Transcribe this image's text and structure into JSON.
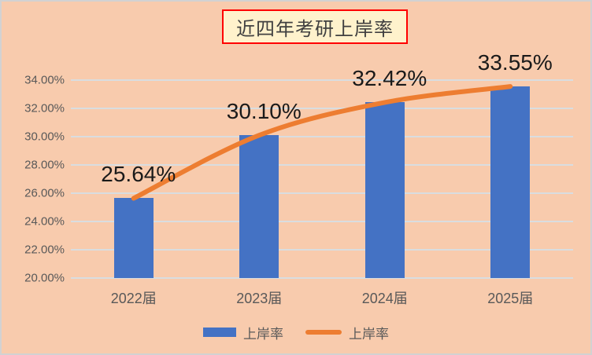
{
  "title": "近四年考研上岸率",
  "colors": {
    "background": "#F8CBAD",
    "bar": "#4472C4",
    "line": "#ED7D31",
    "grid": "#D9DDE0",
    "title_box_bg": "#FFF2CC",
    "title_box_border": "#FF0000",
    "title_text": "#404040",
    "axis_text": "#595959",
    "data_label_text": "#1a1a1a"
  },
  "chart_data": {
    "type": "bar",
    "title": "近四年考研上岸率",
    "categories": [
      "2022届",
      "2023届",
      "2024届",
      "2025届"
    ],
    "series": [
      {
        "name": "上岸率",
        "type": "bar",
        "values": [
          25.64,
          30.1,
          32.42,
          33.55
        ]
      },
      {
        "name": "上岸率",
        "type": "line",
        "values": [
          25.64,
          30.1,
          32.42,
          33.55
        ]
      }
    ],
    "data_labels": [
      "25.64%",
      "30.10%",
      "32.42%",
      "33.55%"
    ],
    "y_ticks": [
      "34.00%",
      "32.00%",
      "30.00%",
      "28.00%",
      "26.00%",
      "24.00%",
      "22.00%",
      "20.00%"
    ],
    "y_tick_values": [
      34,
      32,
      30,
      28,
      26,
      24,
      22,
      20
    ],
    "ylim": [
      20,
      34
    ],
    "xlabel": "",
    "ylabel": "",
    "grid": true,
    "legend_position": "bottom"
  },
  "legend": [
    {
      "label": "上岸率",
      "swatch": "bar"
    },
    {
      "label": "上岸率",
      "swatch": "line"
    }
  ]
}
